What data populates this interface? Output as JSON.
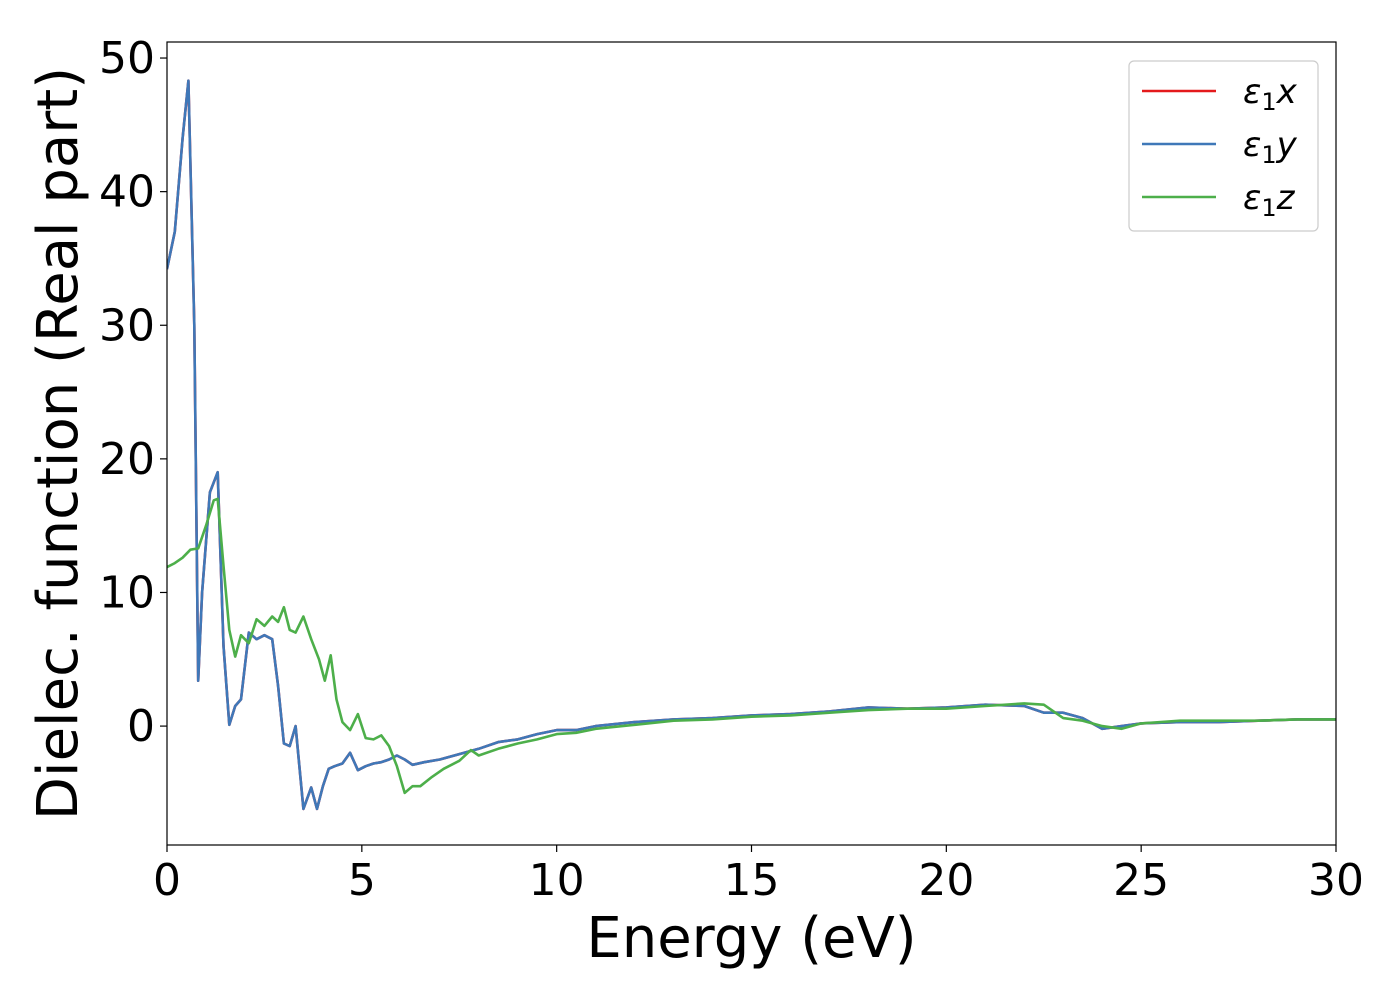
{
  "chart_data": {
    "type": "line",
    "title": "",
    "xlabel": "Energy (eV)",
    "ylabel": "Dielec. function (Real part)",
    "xlim": [
      0,
      30
    ],
    "ylim": [
      -8.9,
      51.2
    ],
    "xticks": [
      0,
      5,
      10,
      15,
      20,
      25,
      30
    ],
    "xtick_labels": [
      "0",
      "5",
      "10",
      "15",
      "20",
      "25",
      "30"
    ],
    "yticks": [
      0,
      10,
      20,
      30,
      40,
      50
    ],
    "ytick_labels": [
      "0",
      "10",
      "20",
      "30",
      "40",
      "50"
    ],
    "grid": false,
    "legend_position": "top-right",
    "series": [
      {
        "name": "ε₁x",
        "label_main": "ε",
        "label_sub": "1",
        "label_var": "x",
        "color": "#e41a1c",
        "x": [
          0,
          0.2,
          0.4,
          0.55,
          0.7,
          0.8,
          0.9,
          1.1,
          1.3,
          1.45,
          1.6,
          1.75,
          1.9,
          2.1,
          2.3,
          2.5,
          2.7,
          2.85,
          3.0,
          3.15,
          3.3,
          3.5,
          3.7,
          3.85,
          4.0,
          4.15,
          4.3,
          4.5,
          4.7,
          4.9,
          5.1,
          5.3,
          5.5,
          5.7,
          5.9,
          6.1,
          6.3,
          6.6,
          7.0,
          7.5,
          8.0,
          8.5,
          9.0,
          9.5,
          10,
          10.5,
          11,
          12,
          13,
          14,
          15,
          16,
          17,
          18,
          19,
          20,
          21,
          22,
          22.5,
          23,
          23.5,
          24,
          24.5,
          25,
          26,
          27,
          28,
          29,
          30
        ],
        "y": [
          34.2,
          37.0,
          44.0,
          48.3,
          30.0,
          3.4,
          10.0,
          17.5,
          19.0,
          6.0,
          0.1,
          1.5,
          2.0,
          7.0,
          6.5,
          6.8,
          6.5,
          3.0,
          -1.3,
          -1.5,
          0.0,
          -6.2,
          -4.6,
          -6.2,
          -4.5,
          -3.2,
          -3.0,
          -2.8,
          -2.0,
          -3.3,
          -3.0,
          -2.8,
          -2.7,
          -2.5,
          -2.2,
          -2.5,
          -2.9,
          -2.7,
          -2.5,
          -2.1,
          -1.7,
          -1.2,
          -1.0,
          -0.6,
          -0.3,
          -0.3,
          0.0,
          0.3,
          0.5,
          0.6,
          0.8,
          0.9,
          1.1,
          1.4,
          1.3,
          1.4,
          1.6,
          1.5,
          1.0,
          1.0,
          0.6,
          -0.2,
          0.0,
          0.2,
          0.3,
          0.3,
          0.4,
          0.5,
          0.5
        ]
      },
      {
        "name": "ε₁y",
        "label_main": "ε",
        "label_sub": "1",
        "label_var": "y",
        "color": "#3f78b8",
        "x": [
          0,
          0.2,
          0.4,
          0.55,
          0.7,
          0.8,
          0.9,
          1.1,
          1.3,
          1.45,
          1.6,
          1.75,
          1.9,
          2.1,
          2.3,
          2.5,
          2.7,
          2.85,
          3.0,
          3.15,
          3.3,
          3.5,
          3.7,
          3.85,
          4.0,
          4.15,
          4.3,
          4.5,
          4.7,
          4.9,
          5.1,
          5.3,
          5.5,
          5.7,
          5.9,
          6.1,
          6.3,
          6.6,
          7.0,
          7.5,
          8.0,
          8.5,
          9.0,
          9.5,
          10,
          10.5,
          11,
          12,
          13,
          14,
          15,
          16,
          17,
          18,
          19,
          20,
          21,
          22,
          22.5,
          23,
          23.5,
          24,
          24.5,
          25,
          26,
          27,
          28,
          29,
          30
        ],
        "y": [
          34.2,
          37.0,
          44.0,
          48.3,
          30.0,
          3.4,
          10.0,
          17.5,
          19.0,
          6.0,
          0.1,
          1.5,
          2.0,
          7.0,
          6.5,
          6.8,
          6.5,
          3.0,
          -1.3,
          -1.5,
          0.0,
          -6.2,
          -4.6,
          -6.2,
          -4.5,
          -3.2,
          -3.0,
          -2.8,
          -2.0,
          -3.3,
          -3.0,
          -2.8,
          -2.7,
          -2.5,
          -2.2,
          -2.5,
          -2.9,
          -2.7,
          -2.5,
          -2.1,
          -1.7,
          -1.2,
          -1.0,
          -0.6,
          -0.3,
          -0.3,
          0.0,
          0.3,
          0.5,
          0.6,
          0.8,
          0.9,
          1.1,
          1.4,
          1.3,
          1.4,
          1.6,
          1.5,
          1.0,
          1.0,
          0.6,
          -0.2,
          0.0,
          0.2,
          0.3,
          0.3,
          0.4,
          0.5,
          0.5
        ]
      },
      {
        "name": "ε₁z",
        "label_main": "ε",
        "label_sub": "1",
        "label_var": "z",
        "color": "#4daf4a",
        "x": [
          0,
          0.2,
          0.4,
          0.6,
          0.8,
          1.0,
          1.2,
          1.3,
          1.45,
          1.6,
          1.75,
          1.9,
          2.1,
          2.3,
          2.5,
          2.7,
          2.85,
          3.0,
          3.15,
          3.3,
          3.5,
          3.7,
          3.9,
          4.05,
          4.2,
          4.35,
          4.5,
          4.7,
          4.9,
          5.1,
          5.3,
          5.5,
          5.7,
          5.9,
          6.1,
          6.3,
          6.5,
          6.8,
          7.1,
          7.5,
          7.8,
          8.0,
          8.5,
          9.0,
          9.5,
          10,
          10.5,
          11,
          12,
          13,
          14,
          15,
          16,
          17,
          18,
          19,
          20,
          21,
          22,
          22.5,
          23,
          23.5,
          24,
          24.5,
          25,
          26,
          27,
          28,
          29,
          30
        ],
        "y": [
          11.9,
          12.2,
          12.6,
          13.2,
          13.3,
          15.0,
          16.9,
          17.0,
          12.0,
          7.2,
          5.2,
          6.8,
          6.2,
          8.0,
          7.5,
          8.2,
          7.8,
          8.9,
          7.2,
          7.0,
          8.2,
          6.5,
          5.0,
          3.4,
          5.3,
          2.0,
          0.3,
          -0.3,
          0.9,
          -0.9,
          -1.0,
          -0.7,
          -1.5,
          -3.0,
          -5.0,
          -4.5,
          -4.5,
          -3.8,
          -3.2,
          -2.6,
          -1.8,
          -2.2,
          -1.7,
          -1.3,
          -1.0,
          -0.6,
          -0.5,
          -0.2,
          0.1,
          0.4,
          0.5,
          0.7,
          0.8,
          1.0,
          1.2,
          1.3,
          1.3,
          1.5,
          1.7,
          1.6,
          0.6,
          0.4,
          0.0,
          -0.2,
          0.2,
          0.4,
          0.4,
          0.4,
          0.5,
          0.5
        ]
      }
    ]
  }
}
